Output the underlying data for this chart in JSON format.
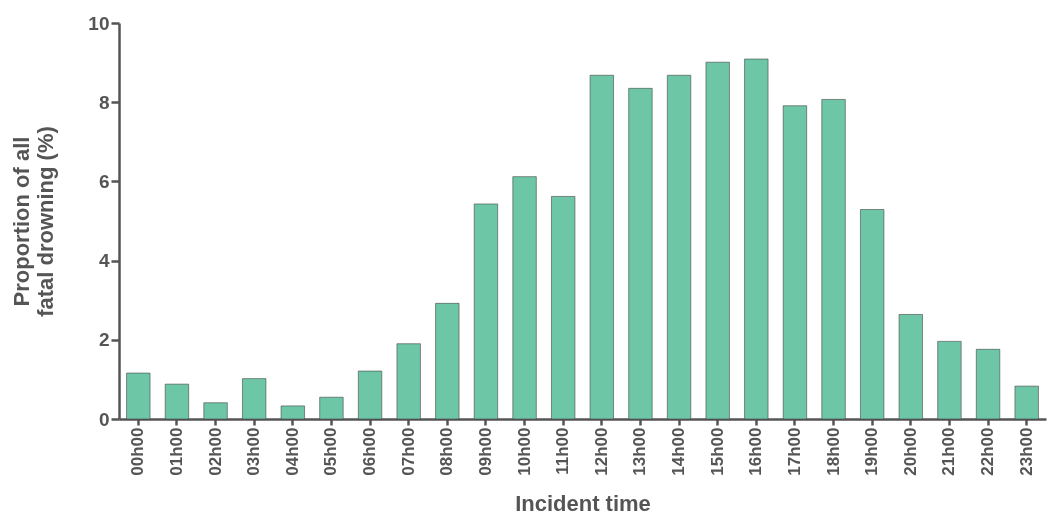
{
  "chart_data": {
    "type": "bar",
    "xlabel": "Incident time",
    "ylabel": "Proportion of all\nfatal drowning (%)",
    "categories": [
      "00h00",
      "01h00",
      "02h00",
      "03h00",
      "04h00",
      "05h00",
      "06h00",
      "07h00",
      "08h00",
      "09h00",
      "10h00",
      "11h00",
      "12h00",
      "13h00",
      "14h00",
      "15h00",
      "16h00",
      "17h00",
      "18h00",
      "19h00",
      "20h00",
      "21h00",
      "22h00",
      "23h00"
    ],
    "values": [
      1.16,
      0.88,
      0.41,
      1.02,
      0.33,
      0.55,
      1.21,
      1.9,
      2.92,
      5.43,
      6.12,
      5.62,
      8.68,
      8.35,
      8.68,
      9.01,
      9.09,
      7.91,
      8.07,
      5.29,
      2.64,
      1.96,
      1.76,
      0.83
    ],
    "color": "#6dc7a6",
    "ylim": [
      0,
      10
    ],
    "yticks": [
      0,
      2,
      4,
      6,
      8,
      10
    ],
    "grid": false
  }
}
